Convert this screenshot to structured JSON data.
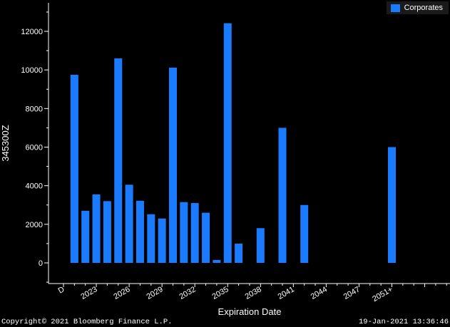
{
  "chart_data": {
    "type": "bar",
    "ylabel": "345300Z",
    "xlabel": "Expiration Date",
    "ylim": [
      -1000,
      13500
    ],
    "yticks": [
      0,
      2000,
      4000,
      6000,
      8000,
      10000,
      12000
    ],
    "ytick_labels": [
      "0",
      "2000",
      "4000",
      "6000",
      "8000",
      "10000",
      "12000"
    ],
    "xtick_labels": [
      "D",
      "2023",
      "2026",
      "2029",
      "2032",
      "2035",
      "2038",
      "2041",
      "2044",
      "2047",
      "2051+"
    ],
    "grid": false,
    "legend_position": "top-right",
    "series": [
      {
        "name": "Corporates",
        "color": "#1A7BFF",
        "points": [
          {
            "slot": 1,
            "value": 9750
          },
          {
            "slot": 2,
            "value": 2700
          },
          {
            "slot": 3,
            "value": 3550
          },
          {
            "slot": 4,
            "value": 3200
          },
          {
            "slot": 5,
            "value": 10600
          },
          {
            "slot": 6,
            "value": 4050
          },
          {
            "slot": 7,
            "value": 3220
          },
          {
            "slot": 8,
            "value": 2520
          },
          {
            "slot": 9,
            "value": 2300
          },
          {
            "slot": 10,
            "value": 10120
          },
          {
            "slot": 11,
            "value": 3150
          },
          {
            "slot": 12,
            "value": 3100
          },
          {
            "slot": 13,
            "value": 2600
          },
          {
            "slot": 14,
            "value": 150
          },
          {
            "slot": 15,
            "value": 12420
          },
          {
            "slot": 16,
            "value": 1000
          },
          {
            "slot": 18,
            "value": 1800
          },
          {
            "slot": 20,
            "value": 7000
          },
          {
            "slot": 22,
            "value": 3000
          },
          {
            "slot": 30,
            "value": 6000
          }
        ]
      }
    ]
  },
  "footer": {
    "copyright": "Copyright© 2021 Bloomberg Finance L.P.",
    "timestamp": "19-Jan-2021 13:36:46"
  }
}
